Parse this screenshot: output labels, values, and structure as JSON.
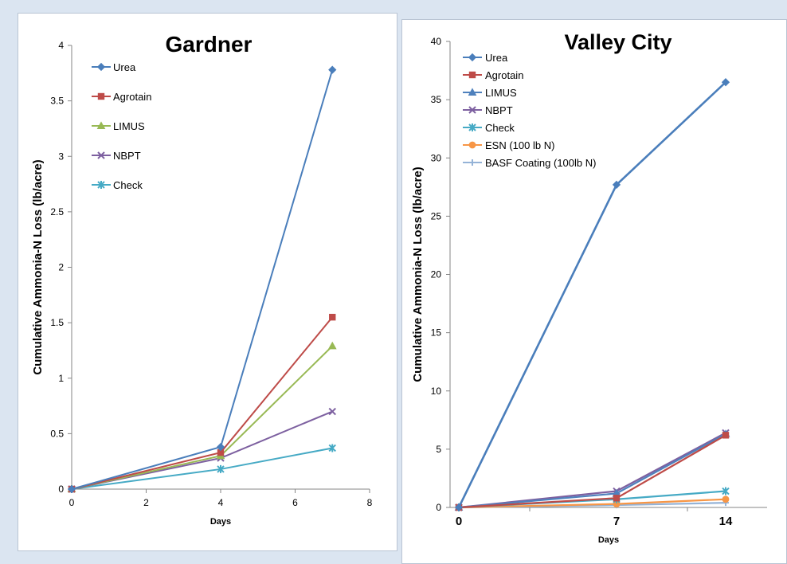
{
  "chart_data": [
    {
      "type": "line",
      "title": "Gardner",
      "xlabel": "Days",
      "ylabel": "Cumulative Ammonia-N Loss (lb/acre)",
      "xlim": [
        0,
        8
      ],
      "ylim": [
        0,
        4
      ],
      "x_ticks": [
        "0",
        "2",
        "4",
        "6",
        "8"
      ],
      "y_ticks": [
        "0",
        "0.5",
        "1",
        "1.5",
        "2",
        "2.5",
        "3",
        "3.5",
        "4"
      ],
      "legend_position": "top-left",
      "grid": false,
      "series": [
        {
          "name": "Urea",
          "color": "#4a7ebb",
          "marker": "diamond",
          "x": [
            0,
            4,
            7
          ],
          "y": [
            0,
            0.38,
            3.78
          ]
        },
        {
          "name": "Agrotain",
          "color": "#be4b48",
          "marker": "square",
          "x": [
            0,
            4,
            7
          ],
          "y": [
            0,
            0.33,
            1.55
          ]
        },
        {
          "name": "LIMUS",
          "color": "#98b954",
          "marker": "triangle",
          "x": [
            0,
            4,
            7
          ],
          "y": [
            0,
            0.3,
            1.29
          ]
        },
        {
          "name": "NBPT",
          "color": "#7d60a0",
          "marker": "x",
          "x": [
            0,
            4,
            7
          ],
          "y": [
            0,
            0.28,
            0.7
          ]
        },
        {
          "name": "Check",
          "color": "#46aac5",
          "marker": "star",
          "x": [
            0,
            4,
            7
          ],
          "y": [
            0,
            0.18,
            0.37
          ]
        }
      ]
    },
    {
      "type": "line",
      "title": "Valley City",
      "xlabel": "Days",
      "ylabel": "Cumulative Ammonia-N Loss (lb/acre)",
      "categories": [
        "0",
        "7",
        "14"
      ],
      "ylim": [
        0,
        40
      ],
      "y_ticks": [
        "0",
        "5",
        "10",
        "15",
        "20",
        "25",
        "30",
        "35",
        "40"
      ],
      "legend_position": "top-left",
      "grid": false,
      "series": [
        {
          "name": "Urea",
          "color": "#4a7ebb",
          "marker": "diamond",
          "values": [
            0,
            27.7,
            36.5
          ]
        },
        {
          "name": "Agrotain",
          "color": "#be4b48",
          "marker": "square",
          "values": [
            0,
            0.8,
            6.2
          ]
        },
        {
          "name": "LIMUS",
          "color": "#4f81bd",
          "marker": "triangle",
          "values": [
            0,
            1.2,
            6.3
          ]
        },
        {
          "name": "NBPT",
          "color": "#7d60a0",
          "marker": "x",
          "values": [
            0,
            1.4,
            6.4
          ]
        },
        {
          "name": "Check",
          "color": "#46aac5",
          "marker": "star",
          "values": [
            0,
            0.7,
            1.4
          ]
        },
        {
          "name": "ESN (100 lb N)",
          "color": "#f79646",
          "marker": "circle",
          "values": [
            0,
            0.3,
            0.7
          ]
        },
        {
          "name": "BASF Coating (100lb N)",
          "color": "#95b3d7",
          "marker": "plus",
          "values": [
            0,
            0.2,
            0.4
          ]
        }
      ]
    }
  ]
}
